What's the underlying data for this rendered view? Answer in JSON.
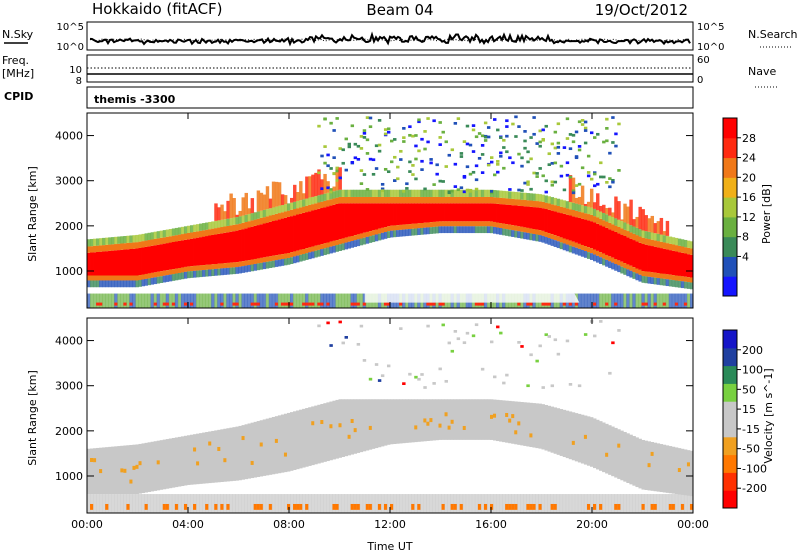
{
  "header": {
    "station": "Hokkaido (fitACF)",
    "beam": "Beam 04",
    "date": "19/Oct/2012"
  },
  "strip_panels": {
    "nsky_label": "N.Sky",
    "nsearch_label": "N.Search",
    "freq_label": "Freq.",
    "freq_unit": "[MHz]",
    "nave_label": "Nave",
    "cpid_label": "CPID",
    "cpid_text": "themis -3300",
    "noise_ticks_left": [
      "10^5",
      "10^0"
    ],
    "noise_ticks_right": [
      "10^5",
      "10^0"
    ],
    "freq_ticks_left": [
      "10",
      "8"
    ],
    "nave_ticks_right": [
      "60",
      "0"
    ]
  },
  "colors": {
    "power_scale": [
      "#1515ff",
      "#2050b8",
      "#3a8a58",
      "#6ab040",
      "#a8c83a",
      "#f0b018",
      "#f07818",
      "#ff2a10",
      "#ff0000"
    ],
    "velocity_scale": [
      "#ff0000",
      "#ff3000",
      "#ff7800",
      "#f0a020",
      "#c8c8c8",
      "#c8c8c8",
      "#78d040",
      "#2a8a58",
      "#2040a0",
      "#1515c8"
    ]
  },
  "chart_data": [
    {
      "type": "heatmap",
      "title": "",
      "xlabel": "",
      "ylabel": "Slant Range [km]",
      "colorbar_label": "Power [dB]",
      "colorbar_ticks": [
        "28",
        "24",
        "20",
        "16",
        "12",
        "8",
        "4"
      ],
      "x_ticks": [
        "00:00",
        "04:00",
        "08:00",
        "12:00",
        "16:00",
        "20:00",
        "00:00"
      ],
      "x_range_hours": [
        0,
        24
      ],
      "y_ticks": [
        "4000",
        "3000",
        "2000",
        "1000"
      ],
      "y_range_km": [
        180,
        4500
      ],
      "main_band_km": [
        [
          0,
          900,
          1400
        ],
        [
          2,
          900,
          1500
        ],
        [
          4,
          1100,
          1700
        ],
        [
          6,
          1200,
          1900
        ],
        [
          8,
          1400,
          2200
        ],
        [
          10,
          1700,
          2500
        ],
        [
          12,
          2000,
          2500
        ],
        [
          14,
          2100,
          2500
        ],
        [
          16,
          2100,
          2500
        ],
        [
          18,
          1900,
          2400
        ],
        [
          20,
          1500,
          2100
        ],
        [
          22,
          1000,
          1600
        ],
        [
          24,
          850,
          1350
        ]
      ]
    },
    {
      "type": "heatmap",
      "title": "",
      "xlabel": "Time UT",
      "ylabel": "Slant Range [km]",
      "colorbar_label": "Velocity [m s^-1]",
      "colorbar_ticks": [
        "200",
        "100",
        "50",
        "15",
        "-15",
        "-50",
        "-100",
        "-200"
      ],
      "x_ticks": [
        "00:00",
        "04:00",
        "08:00",
        "12:00",
        "16:00",
        "20:00",
        "00:00"
      ],
      "x_range_hours": [
        0,
        24
      ],
      "y_ticks": [
        "4000",
        "3000",
        "2000",
        "1000"
      ],
      "y_range_km": [
        180,
        4500
      ]
    }
  ]
}
